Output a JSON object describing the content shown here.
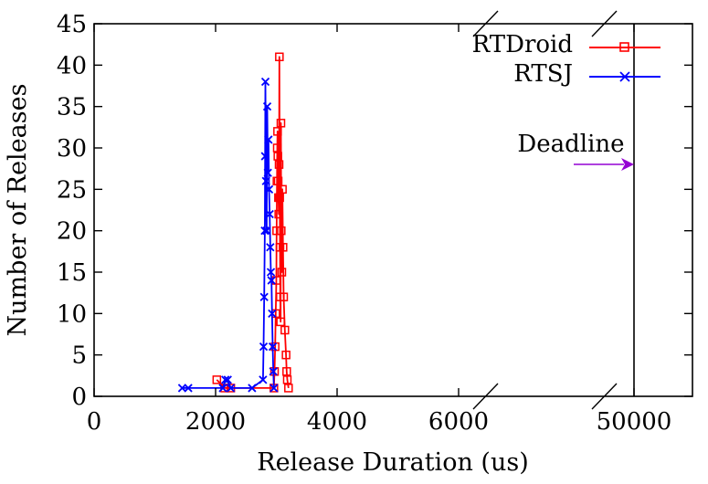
{
  "chart_data": {
    "type": "line",
    "xlabel": "Release Duration (us)",
    "ylabel": "Number of Releases",
    "ylim": [
      0,
      45
    ],
    "y_ticks": [
      0,
      5,
      10,
      15,
      20,
      25,
      30,
      35,
      40,
      45
    ],
    "x_ticks": [
      "0",
      "2000",
      "4000",
      "6000",
      "50000"
    ],
    "x_axis_break": {
      "from": 6500,
      "to": 49500
    },
    "grid": false,
    "legend_position": "top-right",
    "annotation": {
      "label": "Deadline",
      "x": 50000
    },
    "colors": {
      "RTDroid": "#ff0000",
      "RTSJ": "#0000ff",
      "annotation_arrow": "#9400d3"
    },
    "series": [
      {
        "name": "RTDroid",
        "marker": "open-square",
        "points": [
          [
            2020,
            2
          ],
          [
            2150,
            1
          ],
          [
            2250,
            1
          ],
          [
            2960,
            1
          ],
          [
            2970,
            3
          ],
          [
            2980,
            6
          ],
          [
            2990,
            10
          ],
          [
            3000,
            14
          ],
          [
            3005,
            20
          ],
          [
            3010,
            26
          ],
          [
            3015,
            30
          ],
          [
            3020,
            32
          ],
          [
            3025,
            29
          ],
          [
            3030,
            26
          ],
          [
            3035,
            24
          ],
          [
            3040,
            22
          ],
          [
            3045,
            28
          ],
          [
            3050,
            41
          ],
          [
            3055,
            24
          ],
          [
            3060,
            18
          ],
          [
            3065,
            12
          ],
          [
            3070,
            9
          ],
          [
            3075,
            33
          ],
          [
            3080,
            20
          ],
          [
            3090,
            15
          ],
          [
            3100,
            25
          ],
          [
            3110,
            18
          ],
          [
            3120,
            12
          ],
          [
            3140,
            8
          ],
          [
            3160,
            5
          ],
          [
            3170,
            3
          ],
          [
            3180,
            2
          ],
          [
            3200,
            1
          ]
        ]
      },
      {
        "name": "RTSJ",
        "marker": "x",
        "points": [
          [
            1450,
            1
          ],
          [
            1550,
            1
          ],
          [
            2120,
            1
          ],
          [
            2160,
            2
          ],
          [
            2200,
            2
          ],
          [
            2250,
            1
          ],
          [
            2600,
            1
          ],
          [
            2780,
            2
          ],
          [
            2790,
            6
          ],
          [
            2800,
            12
          ],
          [
            2810,
            20
          ],
          [
            2815,
            29
          ],
          [
            2820,
            38
          ],
          [
            2830,
            26
          ],
          [
            2840,
            20
          ],
          [
            2850,
            35
          ],
          [
            2860,
            27
          ],
          [
            2870,
            31
          ],
          [
            2880,
            25
          ],
          [
            2890,
            22
          ],
          [
            2900,
            18
          ],
          [
            2910,
            15
          ],
          [
            2920,
            14
          ],
          [
            2930,
            10
          ],
          [
            2940,
            6
          ],
          [
            2950,
            3
          ],
          [
            2960,
            1
          ]
        ]
      }
    ]
  }
}
